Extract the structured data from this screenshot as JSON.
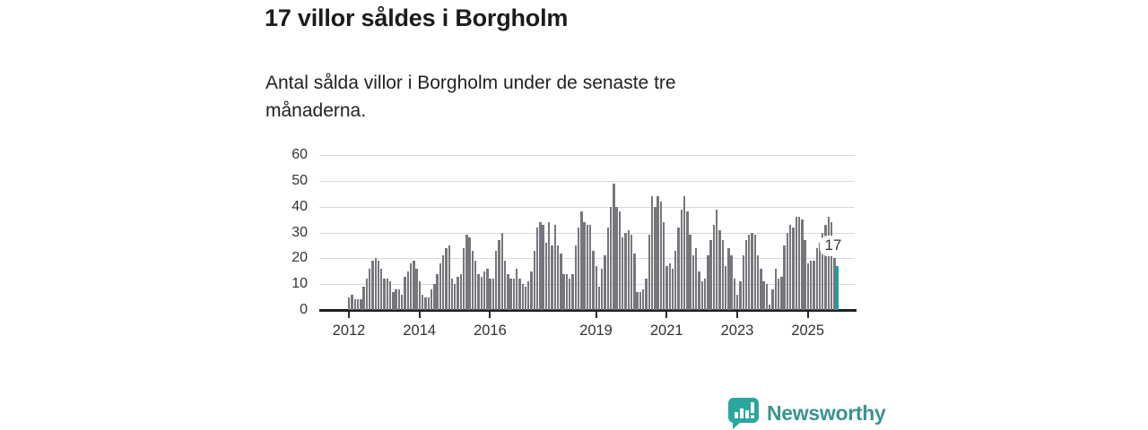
{
  "title": "17 villor såldes i Borgholm",
  "subtitle": "Antal sålda villor i Borgholm under de senaste tre månaderna.",
  "annotation": {
    "label": "17"
  },
  "brand": {
    "name": "Newsworthy",
    "icon": "newsworthy-speech-bubble-chart-icon",
    "icon_color": "#2ba69e",
    "text_color": "#3a948f"
  },
  "chart_data": {
    "type": "bar",
    "title": "17 villor såldes i Borgholm",
    "subtitle": "Antal sålda villor i Borgholm under de senaste tre månaderna.",
    "xlabel": "",
    "ylabel": "",
    "grid": true,
    "legend": "none",
    "ylim": [
      0,
      60
    ],
    "y_ticks": [
      0,
      10,
      20,
      30,
      40,
      50,
      60
    ],
    "x_tick_labels": [
      "2012",
      "2014",
      "2016",
      "2019",
      "2021",
      "2023",
      "2025"
    ],
    "start_month": "2012-01",
    "end_month": "2025-11",
    "bar_color": "#76767c",
    "highlight_color": "#0aa7a4",
    "highlight_index": 166,
    "highlight_value_label": "17",
    "values": [
      5,
      6,
      4,
      4,
      4,
      9,
      12,
      16,
      19,
      20,
      19,
      16,
      12,
      12,
      11,
      7,
      8,
      8,
      6,
      13,
      15,
      18,
      19,
      16,
      11,
      6,
      5,
      5,
      8,
      10,
      14,
      18,
      21,
      24,
      25,
      12,
      10,
      13,
      14,
      24,
      29,
      28,
      23,
      19,
      14,
      13,
      15,
      16,
      12,
      12,
      23,
      27,
      30,
      19,
      14,
      12,
      12,
      16,
      12,
      10,
      9,
      11,
      15,
      23,
      32,
      34,
      33,
      26,
      34,
      25,
      33,
      25,
      22,
      14,
      14,
      12,
      14,
      25,
      32,
      38,
      34,
      33,
      33,
      23,
      17,
      9,
      16,
      21,
      32,
      40,
      49,
      40,
      38,
      28,
      30,
      31,
      29,
      22,
      7,
      7,
      8,
      12,
      29,
      44,
      40,
      44,
      42,
      34,
      17,
      18,
      16,
      23,
      32,
      39,
      44,
      38,
      29,
      21,
      24,
      15,
      11,
      12,
      21,
      27,
      33,
      39,
      31,
      27,
      17,
      24,
      21,
      12,
      6,
      11,
      21,
      27,
      29,
      30,
      29,
      21,
      16,
      11,
      10,
      2,
      8,
      16,
      12,
      13,
      25,
      30,
      33,
      32,
      36,
      36,
      35,
      27,
      18,
      19,
      19,
      24,
      26,
      30,
      33,
      36,
      34,
      20,
      17
    ]
  }
}
